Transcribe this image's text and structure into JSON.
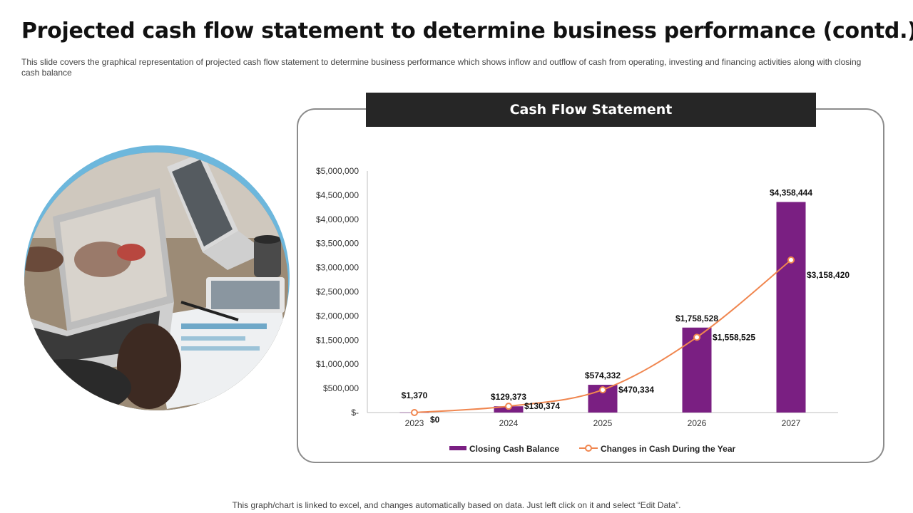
{
  "slide": {
    "title": "Projected cash flow statement to determine business performance (contd.)",
    "subtitle": "This slide covers the graphical representation of projected cash flow statement to determine business performance which shows inflow and outflow of cash from operating, investing and financing activities along with closing cash balance",
    "footer": "This graph/chart is linked to excel,  and changes automatically based on data. Just left click on it and select “Edit Data”."
  },
  "colors": {
    "bar": "#7a1f82",
    "line": "#f0864f",
    "header_bg": "#262626",
    "photo_ring": "#6db7dc"
  },
  "image": {
    "description_icon": "laptop-meeting-photo"
  },
  "chart_data": {
    "type": "bar",
    "title": "Cash Flow Statement",
    "categories": [
      "2023",
      "2024",
      "2025",
      "2026",
      "2027"
    ],
    "ylim": [
      0,
      5000000
    ],
    "yticks": [
      0,
      500000,
      1000000,
      1500000,
      2000000,
      2500000,
      3000000,
      3500000,
      4000000,
      4500000,
      5000000
    ],
    "ytick_labels": [
      "$-",
      "$500,000",
      "$1,000,000",
      "$1,500,000",
      "$2,000,000",
      "$2,500,000",
      "$3,000,000",
      "$3,500,000",
      "$4,000,000",
      "$4,500,000",
      "$5,000,000"
    ],
    "legend_position": "bottom",
    "grid": false,
    "series": [
      {
        "name": "Closing Cash Balance",
        "kind": "bar",
        "values": [
          1370,
          129373,
          574332,
          1758528,
          4358444
        ],
        "labels": [
          "$1,370",
          "$129,373",
          "$574,332",
          "$1,758,528",
          "$4,358,444"
        ]
      },
      {
        "name": "Changes in Cash During the Year",
        "kind": "line",
        "values": [
          0,
          130374,
          470334,
          1558525,
          3158420
        ],
        "labels": [
          "$0",
          "$130,374",
          "$470,334",
          "$1,558,525",
          "$3,158,420"
        ]
      }
    ]
  }
}
